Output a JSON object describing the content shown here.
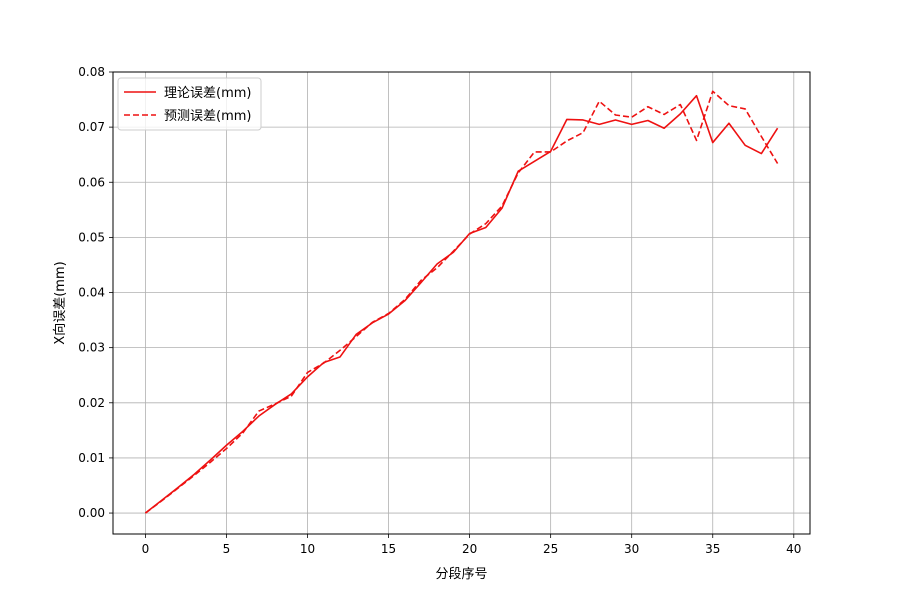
{
  "chart_data": {
    "type": "line",
    "title": "",
    "xlabel": "分段序号",
    "ylabel": "X向误差(mm)",
    "xlim": [
      -2,
      41
    ],
    "ylim": [
      -0.0038,
      0.08
    ],
    "xticks": [
      0,
      5,
      10,
      15,
      20,
      25,
      30,
      35,
      40
    ],
    "yticks": [
      0.0,
      0.01,
      0.02,
      0.03,
      0.04,
      0.05,
      0.06,
      0.07,
      0.08
    ],
    "xtick_labels": [
      "0",
      "5",
      "10",
      "15",
      "20",
      "25",
      "30",
      "35",
      "40"
    ],
    "ytick_labels": [
      "0.00",
      "0.01",
      "0.02",
      "0.03",
      "0.04",
      "0.05",
      "0.06",
      "0.07",
      "0.08"
    ],
    "grid": true,
    "legend_position": "top-left",
    "x": [
      0,
      1,
      2,
      3,
      4,
      5,
      6,
      7,
      8,
      9,
      10,
      11,
      12,
      13,
      14,
      15,
      16,
      17,
      18,
      19,
      20,
      21,
      22,
      23,
      24,
      25,
      26,
      27,
      28,
      29,
      30,
      31,
      32,
      33,
      34,
      35,
      36,
      37,
      38,
      39
    ],
    "series": [
      {
        "name": "理论误差(mm)",
        "color": "#ee1111",
        "dash": "solid",
        "values": [
          0.0,
          0.0023,
          0.0046,
          0.007,
          0.0096,
          0.0123,
          0.0148,
          0.0176,
          0.0197,
          0.0216,
          0.0247,
          0.0273,
          0.0283,
          0.0324,
          0.0345,
          0.0361,
          0.0385,
          0.0418,
          0.0452,
          0.0473,
          0.0507,
          0.0518,
          0.0553,
          0.062,
          0.0638,
          0.0656,
          0.0714,
          0.0713,
          0.0705,
          0.0713,
          0.0705,
          0.0712,
          0.0698,
          0.0724,
          0.0757,
          0.0672,
          0.0707,
          0.0667,
          0.0652,
          0.0698
        ]
      },
      {
        "name": "预测误差(mm)",
        "color": "#ee1111",
        "dash": "dashed",
        "values": [
          0.0,
          0.0022,
          0.0045,
          0.0068,
          0.0092,
          0.0117,
          0.0145,
          0.0185,
          0.0198,
          0.0212,
          0.0255,
          0.0272,
          0.0295,
          0.032,
          0.0346,
          0.0362,
          0.0387,
          0.0422,
          0.0445,
          0.0475,
          0.0506,
          0.0525,
          0.0557,
          0.0617,
          0.0655,
          0.0655,
          0.0675,
          0.069,
          0.0747,
          0.0722,
          0.0718,
          0.0737,
          0.0723,
          0.0741,
          0.0676,
          0.0765,
          0.0739,
          0.0733,
          0.0683,
          0.0634
        ]
      }
    ]
  }
}
